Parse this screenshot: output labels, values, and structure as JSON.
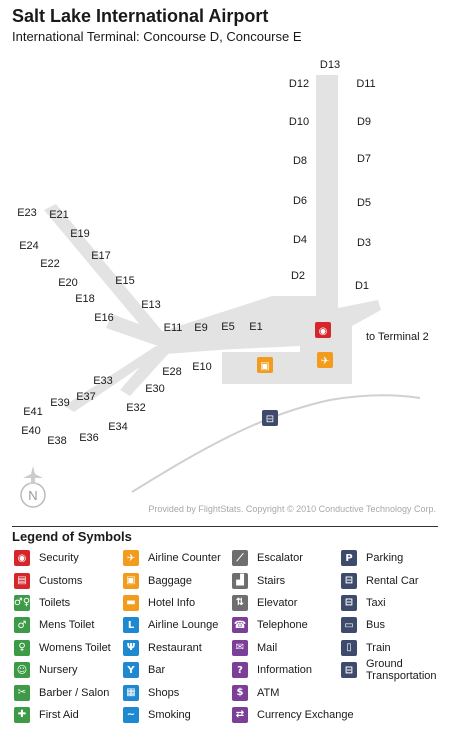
{
  "header": {
    "title": "Salt Lake International Airport",
    "subtitle": "International Terminal:  Concourse D,  Concourse E"
  },
  "map": {
    "gates_d": [
      "D13",
      "D12",
      "D11",
      "D10",
      "D9",
      "D8",
      "D7",
      "D6",
      "D5",
      "D4",
      "D3",
      "D2",
      "D1"
    ],
    "gates_e": [
      "E23",
      "E21",
      "E19",
      "E24",
      "E22",
      "E17",
      "E20",
      "E15",
      "E18",
      "E13",
      "E16",
      "E11",
      "E9",
      "E5",
      "E1",
      "E28",
      "E10",
      "E30",
      "E33",
      "E32",
      "E39",
      "E37",
      "E41",
      "E34",
      "E40",
      "E36",
      "E38"
    ],
    "to_terminal_label": "to Terminal 2",
    "compass_label": "N",
    "credit": "Provided by FlightStats. Copyright © 2010 Conductive Technology Corp.",
    "colors": {
      "concourse": "#e3e3e3",
      "security": "#d7262b",
      "orange": "#f29b1c",
      "navy": "#3d4a6b",
      "green": "#3d9a46",
      "blue": "#1e88d0",
      "purple": "#7b3f97",
      "gray": "#6e6e6e"
    }
  },
  "legend": {
    "title": "Legend of Symbols",
    "col1": [
      {
        "label": "Security",
        "icon": "security-icon",
        "color": "#d7262b",
        "glyph": "◉"
      },
      {
        "label": "Customs",
        "icon": "customs-icon",
        "color": "#d7262b",
        "glyph": "▤"
      },
      {
        "label": "Toilets",
        "icon": "toilets-icon",
        "color": "#3d9a46",
        "glyph": "♂♀"
      },
      {
        "label": "Mens Toilet",
        "icon": "mens-toilet-icon",
        "color": "#3d9a46",
        "glyph": "♂"
      },
      {
        "label": "Womens Toilet",
        "icon": "womens-toilet-icon",
        "color": "#3d9a46",
        "glyph": "♀"
      },
      {
        "label": "Nursery",
        "icon": "nursery-icon",
        "color": "#3d9a46",
        "glyph": "☺"
      },
      {
        "label": "Barber / Salon",
        "icon": "barber-icon",
        "color": "#3d9a46",
        "glyph": "✂"
      },
      {
        "label": "First Aid",
        "icon": "first-aid-icon",
        "color": "#3d9a46",
        "glyph": "✚"
      }
    ],
    "col2": [
      {
        "label": "Airline Counter",
        "icon": "airline-counter-icon",
        "color": "#f29b1c",
        "glyph": "✈"
      },
      {
        "label": "Baggage",
        "icon": "baggage-icon",
        "color": "#f29b1c",
        "glyph": "▣"
      },
      {
        "label": "Hotel Info",
        "icon": "hotel-info-icon",
        "color": "#f29b1c",
        "glyph": "▬"
      },
      {
        "label": "Airline Lounge",
        "icon": "airline-lounge-icon",
        "color": "#1e88d0",
        "glyph": "L"
      },
      {
        "label": "Restaurant",
        "icon": "restaurant-icon",
        "color": "#1e88d0",
        "glyph": "Ψ"
      },
      {
        "label": "Bar",
        "icon": "bar-icon",
        "color": "#1e88d0",
        "glyph": "Y"
      },
      {
        "label": "Shops",
        "icon": "shops-icon",
        "color": "#1e88d0",
        "glyph": "▦"
      },
      {
        "label": "Smoking",
        "icon": "smoking-icon",
        "color": "#1e88d0",
        "glyph": "~"
      }
    ],
    "col3": [
      {
        "label": "Escalator",
        "icon": "escalator-icon",
        "color": "#6e6e6e",
        "glyph": "⟋"
      },
      {
        "label": "Stairs",
        "icon": "stairs-icon",
        "color": "#6e6e6e",
        "glyph": "▟"
      },
      {
        "label": "Elevator",
        "icon": "elevator-icon",
        "color": "#6e6e6e",
        "glyph": "⇅"
      },
      {
        "label": "Telephone",
        "icon": "telephone-icon",
        "color": "#7b3f97",
        "glyph": "☎"
      },
      {
        "label": "Mail",
        "icon": "mail-icon",
        "color": "#7b3f97",
        "glyph": "✉"
      },
      {
        "label": "Information",
        "icon": "information-icon",
        "color": "#7b3f97",
        "glyph": "?"
      },
      {
        "label": "ATM",
        "icon": "atm-icon",
        "color": "#7b3f97",
        "glyph": "$"
      },
      {
        "label": "Currency Exchange",
        "icon": "currency-exchange-icon",
        "color": "#7b3f97",
        "glyph": "⇄"
      }
    ],
    "col4": [
      {
        "label": "Parking",
        "icon": "parking-icon",
        "color": "#3d4a6b",
        "glyph": "P"
      },
      {
        "label": "Rental Car",
        "icon": "rental-car-icon",
        "color": "#3d4a6b",
        "glyph": "⊟"
      },
      {
        "label": "Taxi",
        "icon": "taxi-icon",
        "color": "#3d4a6b",
        "glyph": "⊟"
      },
      {
        "label": "Bus",
        "icon": "bus-icon",
        "color": "#3d4a6b",
        "glyph": "▭"
      },
      {
        "label": "Train",
        "icon": "train-icon",
        "color": "#3d4a6b",
        "glyph": "▯"
      },
      {
        "label": "Ground Transportation",
        "icon": "ground-transportation-icon",
        "color": "#3d4a6b",
        "glyph": "⊟"
      }
    ]
  }
}
